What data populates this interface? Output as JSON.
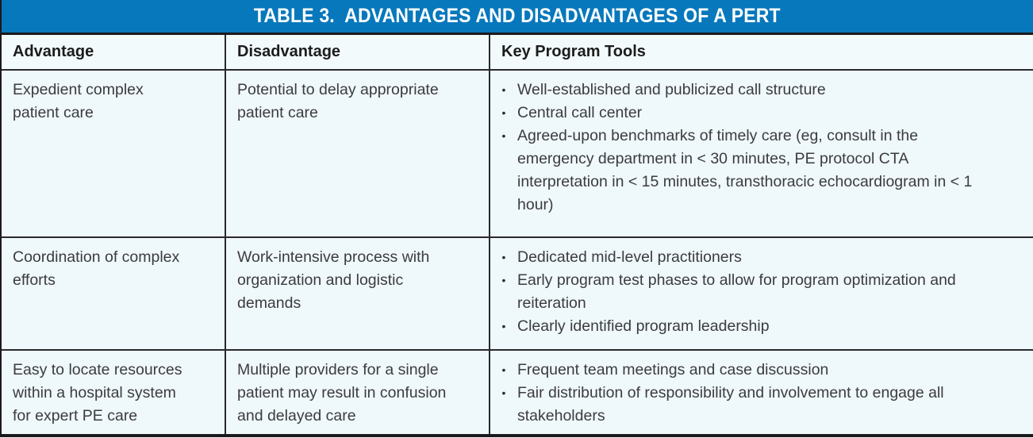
{
  "table": {
    "title": "TABLE 3.  ADVANTAGES AND DISADVANTAGES OF A PERT",
    "columns": [
      "Advantage",
      "Disadvantage",
      "Key Program Tools"
    ],
    "rows": [
      {
        "advantage": "Expedient complex patient care",
        "disadvantage": "Potential to delay appropriate patient care",
        "tools": [
          "Well-established and publicized call structure",
          "Central call center",
          "Agreed-upon benchmarks of timely care (eg, consult in the emergency department in < 30 minutes, PE protocol CTA interpretation in < 15 minutes, transthoracic echocardiogram in < 1 hour)"
        ]
      },
      {
        "advantage": "Coordination of complex efforts",
        "disadvantage": "Work-intensive process with organization and logistic demands",
        "tools": [
          "Dedicated mid-level practitioners",
          "Early program test phases to allow for program optimization and reiteration",
          "Clearly identified program leadership"
        ]
      },
      {
        "advantage": "Easy to locate resources within a hospital system for expert PE care",
        "disadvantage": "Multiple providers for a single patient may result in confusion and delayed care",
        "tools": [
          "Frequent team meetings and case discussion",
          "Fair distribution of responsibility and involvement to engage all stakeholders"
        ]
      }
    ],
    "colors": {
      "title_bar_bg": "#0778BC",
      "title_text": "#FFFFFF",
      "table_bg": "#EFF8FB",
      "header_row_bg": "#F3FAFC",
      "border_dark": "#1A1A1C",
      "grid_line": "#29292C",
      "heading_text": "#1C1C1C",
      "body_text": "#3C3C3E",
      "bullet": "#2B2B2E"
    }
  }
}
